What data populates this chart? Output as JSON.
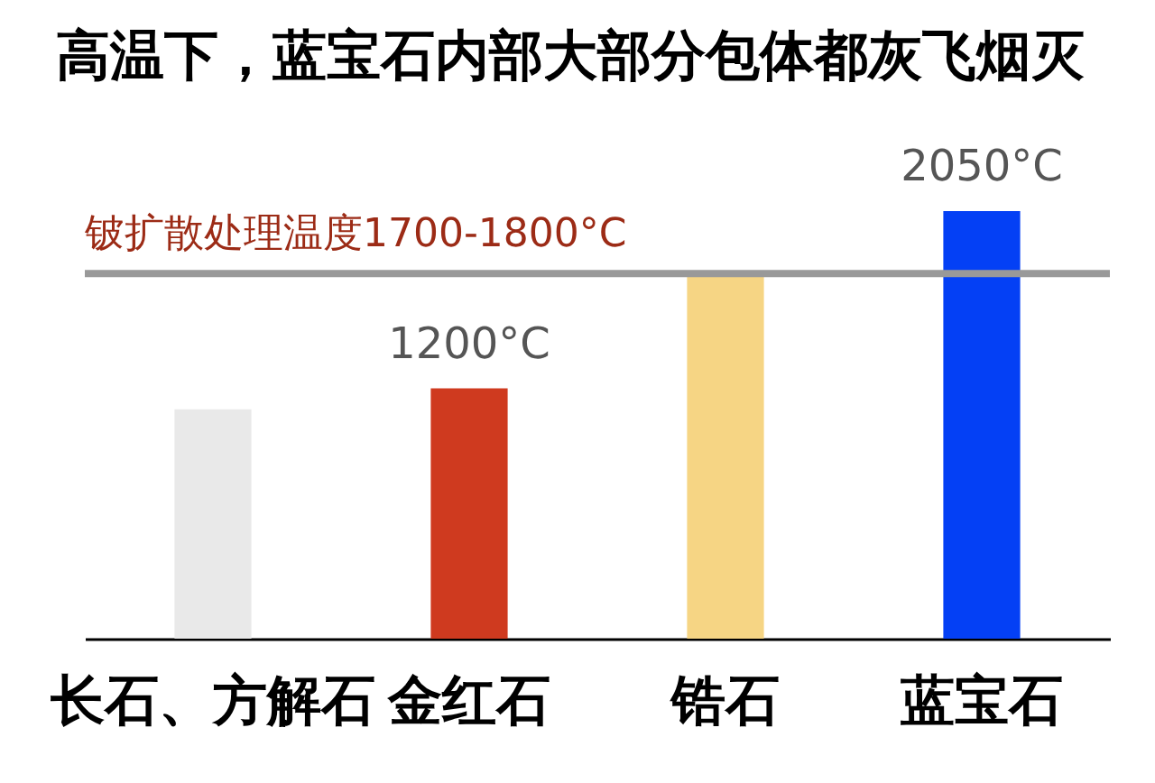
{
  "chart_data": {
    "type": "bar",
    "title": "高温下，蓝宝石内部大部分包体都灰飞烟灭",
    "categories": [
      "长石、方解石",
      "金红石",
      "锆石",
      "蓝宝石"
    ],
    "values": [
      1100,
      1200,
      1750,
      2050
    ],
    "colors": [
      "#e9e9e9",
      "#cf3a1f",
      "#f6d584",
      "#0440f5"
    ],
    "value_labels": [
      null,
      "1200°C",
      null,
      "2050°C"
    ],
    "tick_labels": "x",
    "ref_lines": [
      {
        "axis": "y",
        "value": 1750,
        "label": "铍扩散处理温度1700-1800°C",
        "color": "#999999"
      }
    ]
  }
}
